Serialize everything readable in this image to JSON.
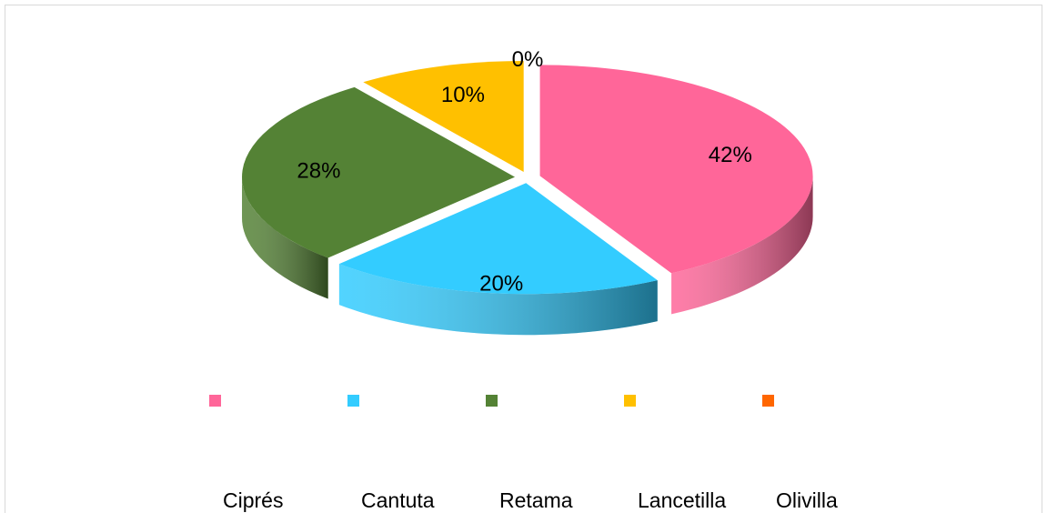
{
  "chart_data": {
    "type": "pie",
    "categories": [
      "Ciprés",
      "Cantuta",
      "Retama",
      "Lancetilla",
      "Olivilla"
    ],
    "values": [
      42,
      20,
      28,
      10,
      0
    ],
    "value_labels": [
      "42%",
      "20%",
      "28%",
      "10%",
      "0%"
    ],
    "colors": [
      "#ff6699",
      "#33ccff",
      "#548235",
      "#ffc000",
      "#ff6600"
    ],
    "legend": "bottom"
  }
}
